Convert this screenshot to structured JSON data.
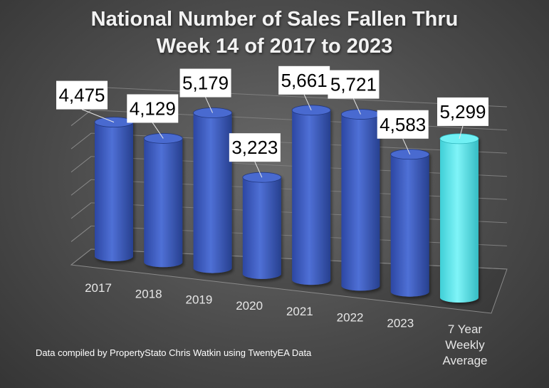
{
  "chart_data": {
    "type": "bar",
    "title_lines": [
      "National Number of Sales Fallen Thru",
      "Week 14 of 2017 to 2023"
    ],
    "categories": [
      "2017",
      "2018",
      "2019",
      "2020",
      "2021",
      "2022",
      "2023",
      "7 Year Weekly Average"
    ],
    "category_label_lines": [
      [
        "2017"
      ],
      [
        "2018"
      ],
      [
        "2019"
      ],
      [
        "2020"
      ],
      [
        "2021"
      ],
      [
        "2022"
      ],
      [
        "2023"
      ],
      [
        "7 Year",
        "Weekly",
        "Average"
      ]
    ],
    "values": [
      4475,
      4129,
      5179,
      3223,
      5661,
      5721,
      4583,
      5299
    ],
    "data_labels": [
      "4,475",
      "4,129",
      "5,179",
      "3,223",
      "5,661",
      "5,721",
      "4,583",
      "5,299"
    ],
    "bar_colors": [
      "#3f5fbf",
      "#3f5fbf",
      "#3f5fbf",
      "#3f5fbf",
      "#3f5fbf",
      "#3f5fbf",
      "#3f5fbf",
      "#5ee6ee"
    ],
    "bar_style": "3d-cylinder",
    "ylim": [
      0,
      7000
    ],
    "grid": true,
    "legend": "none"
  },
  "footnote": "Data compiled by PropertyStato Chris Watkin using TwentyEA Data"
}
